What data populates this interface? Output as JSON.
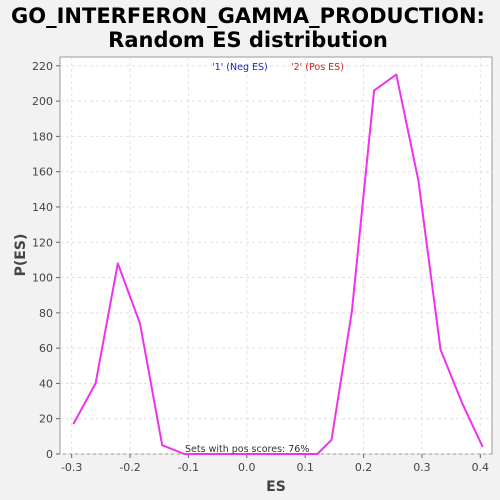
{
  "chart_data": {
    "type": "line",
    "title_line1": "GO_INTERFERON_GAMMA_PRODUCTION:",
    "title_line2": "Random ES distribution",
    "xlabel": "ES",
    "ylabel": "P(ES)",
    "xlim": [
      -0.32,
      0.42
    ],
    "ylim": [
      0,
      225
    ],
    "x_ticks": [
      -0.3,
      -0.2,
      -0.1,
      0.0,
      0.1,
      0.2,
      0.3,
      0.4
    ],
    "x_tick_labels": [
      "-0.3",
      "-0.2",
      "-0.1",
      "0.0",
      "0.1",
      "0.2",
      "0.3",
      "0.4"
    ],
    "y_ticks": [
      0,
      20,
      40,
      60,
      80,
      100,
      120,
      140,
      160,
      180,
      200,
      220
    ],
    "y_tick_labels": [
      "0",
      "20",
      "40",
      "60",
      "80",
      "100",
      "120",
      "140",
      "160",
      "180",
      "200",
      "220"
    ],
    "grid": true,
    "legend": [
      {
        "label": "'1' (Neg ES)",
        "color": "#2222cc"
      },
      {
        "label": "'2' (Pos ES)",
        "color": "#cc2222"
      }
    ],
    "annotation": "Sets with pos scores: 76%",
    "series": [
      {
        "color": "#ee33ee",
        "x": [
          -0.297,
          -0.259,
          -0.221,
          -0.183,
          -0.145,
          -0.107,
          -0.069,
          -0.031,
          0.007,
          0.045,
          0.083,
          0.121,
          0.145,
          0.18,
          0.218,
          0.256,
          0.294,
          0.332,
          0.37,
          0.404
        ],
        "y": [
          17,
          40,
          108,
          74,
          5,
          0,
          0,
          0,
          0,
          0,
          0,
          0,
          8,
          81,
          206,
          215,
          155,
          59,
          28,
          4
        ]
      }
    ]
  }
}
